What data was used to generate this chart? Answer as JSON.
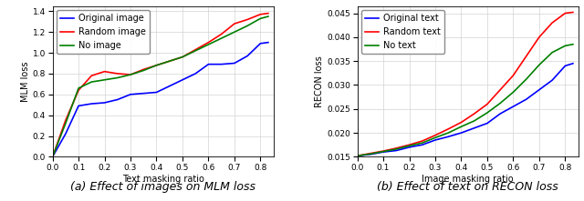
{
  "left": {
    "caption": "(a) Effect of images on MLM loss",
    "xlabel": "Text masking ratio",
    "ylabel": "MLM loss",
    "xlim": [
      0.0,
      0.85
    ],
    "ylim": [
      0.0,
      1.45
    ],
    "yticks": [
      0.0,
      0.2,
      0.4,
      0.6,
      0.8,
      1.0,
      1.2,
      1.4
    ],
    "xticks": [
      0.0,
      0.1,
      0.2,
      0.3,
      0.4,
      0.5,
      0.6,
      0.7,
      0.8
    ],
    "legend_labels": [
      "Original image",
      "Random image",
      "No image"
    ],
    "x": [
      0.0,
      0.05,
      0.1,
      0.15,
      0.2,
      0.25,
      0.3,
      0.35,
      0.4,
      0.45,
      0.5,
      0.55,
      0.6,
      0.65,
      0.7,
      0.75,
      0.8,
      0.83
    ],
    "original_image": [
      0.0,
      0.22,
      0.49,
      0.51,
      0.52,
      0.55,
      0.6,
      0.61,
      0.62,
      0.68,
      0.74,
      0.8,
      0.89,
      0.89,
      0.9,
      0.97,
      1.09,
      1.1
    ],
    "random_image": [
      0.0,
      0.35,
      0.64,
      0.78,
      0.82,
      0.8,
      0.79,
      0.84,
      0.88,
      0.92,
      0.96,
      1.03,
      1.1,
      1.18,
      1.28,
      1.32,
      1.37,
      1.38
    ],
    "no_image": [
      0.0,
      0.32,
      0.66,
      0.72,
      0.74,
      0.76,
      0.79,
      0.83,
      0.88,
      0.92,
      0.96,
      1.02,
      1.08,
      1.14,
      1.2,
      1.26,
      1.33,
      1.35
    ]
  },
  "right": {
    "caption": "(b) Effect of text on RECON loss",
    "xlabel": "Image masking ratio",
    "ylabel": "RECON loss",
    "xlim": [
      0.0,
      0.85
    ],
    "ylim": [
      0.015,
      0.0465
    ],
    "yticks": [
      0.015,
      0.02,
      0.025,
      0.03,
      0.035,
      0.04,
      0.045
    ],
    "xticks": [
      0.0,
      0.1,
      0.2,
      0.3,
      0.4,
      0.5,
      0.6,
      0.7,
      0.8
    ],
    "legend_labels": [
      "Original text",
      "Random text",
      "No text"
    ],
    "x": [
      0.0,
      0.05,
      0.1,
      0.15,
      0.2,
      0.25,
      0.3,
      0.35,
      0.4,
      0.45,
      0.5,
      0.55,
      0.6,
      0.65,
      0.7,
      0.75,
      0.8,
      0.83
    ],
    "original_text": [
      0.0152,
      0.0155,
      0.016,
      0.0163,
      0.017,
      0.0175,
      0.0185,
      0.0192,
      0.02,
      0.021,
      0.022,
      0.024,
      0.0255,
      0.027,
      0.029,
      0.031,
      0.034,
      0.0345
    ],
    "random_text": [
      0.0152,
      0.0157,
      0.0162,
      0.0168,
      0.0175,
      0.0183,
      0.0195,
      0.0208,
      0.0222,
      0.024,
      0.026,
      0.029,
      0.032,
      0.036,
      0.04,
      0.043,
      0.045,
      0.0452
    ],
    "no_text": [
      0.0152,
      0.0156,
      0.0161,
      0.0166,
      0.0173,
      0.0179,
      0.019,
      0.02,
      0.0213,
      0.0225,
      0.0242,
      0.0262,
      0.0285,
      0.0312,
      0.0342,
      0.0368,
      0.0382,
      0.0385
    ]
  },
  "line_width": 1.2,
  "label_fontsize": 7,
  "tick_fontsize": 6.5,
  "legend_fontsize": 7,
  "caption_fontsize": 9
}
